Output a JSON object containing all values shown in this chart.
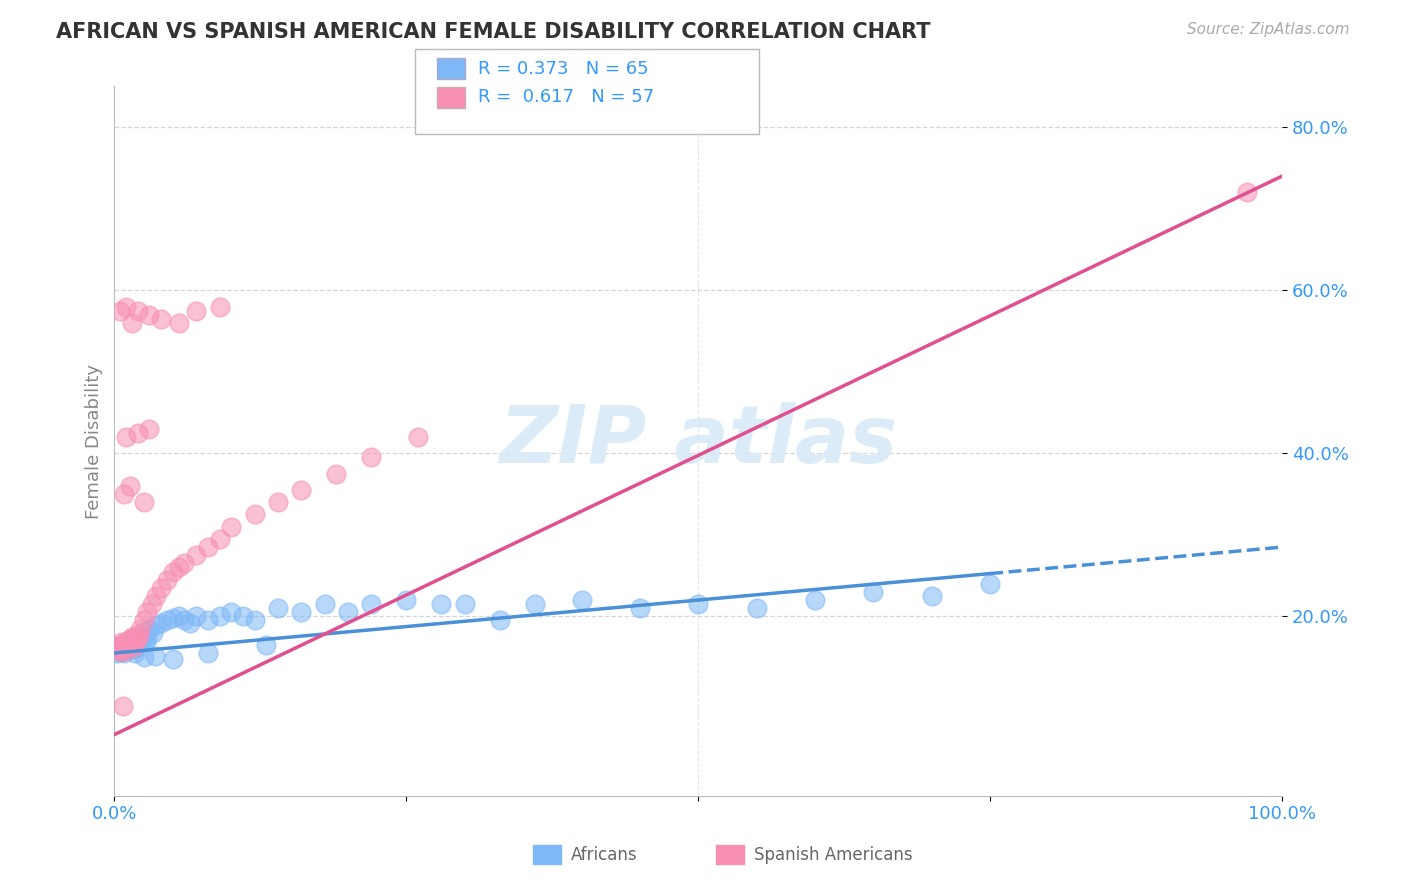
{
  "title": "AFRICAN VS SPANISH AMERICAN FEMALE DISABILITY CORRELATION CHART",
  "source": "Source: ZipAtlas.com",
  "ylabel": "Female Disability",
  "xlim": [
    0.0,
    1.0
  ],
  "ylim": [
    -0.02,
    0.85
  ],
  "ytick_vals": [
    0.2,
    0.4,
    0.6,
    0.8
  ],
  "ytick_labels": [
    "20.0%",
    "40.0%",
    "60.0%",
    "80.0%"
  ],
  "xtick_vals": [
    0.0,
    0.25,
    0.5,
    0.75,
    1.0
  ],
  "xtick_labels": [
    "0.0%",
    "",
    "",
    "",
    "100.0%"
  ],
  "grid_color": "#cccccc",
  "background_color": "#ffffff",
  "african_color": "#7eb8f7",
  "spanish_color": "#f78fb3",
  "african_line_color": "#4a90d9",
  "spanish_line_color": "#e05090",
  "african_R": 0.373,
  "african_N": 65,
  "spanish_R": 0.617,
  "spanish_N": 57,
  "legend_text_color": "#3399ff",
  "axis_label_color": "#3399ff",
  "ylabel_color": "#888888",
  "title_color": "#333333",
  "source_color": "#aaaaaa",
  "tick_color": "#3399ff",
  "african_x": [
    0.002,
    0.003,
    0.004,
    0.005,
    0.006,
    0.007,
    0.008,
    0.009,
    0.01,
    0.011,
    0.012,
    0.013,
    0.014,
    0.015,
    0.016,
    0.017,
    0.018,
    0.019,
    0.02,
    0.021,
    0.022,
    0.024,
    0.026,
    0.028,
    0.03,
    0.033,
    0.036,
    0.04,
    0.045,
    0.05,
    0.055,
    0.06,
    0.065,
    0.07,
    0.08,
    0.09,
    0.1,
    0.11,
    0.12,
    0.14,
    0.16,
    0.18,
    0.2,
    0.22,
    0.25,
    0.28,
    0.3,
    0.33,
    0.36,
    0.4,
    0.45,
    0.5,
    0.55,
    0.6,
    0.65,
    0.7,
    0.75,
    0.008,
    0.012,
    0.018,
    0.025,
    0.035,
    0.05,
    0.08,
    0.13
  ],
  "african_y": [
    0.155,
    0.158,
    0.16,
    0.163,
    0.165,
    0.162,
    0.158,
    0.165,
    0.168,
    0.162,
    0.17,
    0.168,
    0.165,
    0.172,
    0.168,
    0.16,
    0.165,
    0.162,
    0.17,
    0.168,
    0.175,
    0.17,
    0.168,
    0.172,
    0.185,
    0.18,
    0.19,
    0.192,
    0.195,
    0.198,
    0.2,
    0.195,
    0.192,
    0.2,
    0.195,
    0.2,
    0.205,
    0.2,
    0.195,
    0.21,
    0.205,
    0.215,
    0.205,
    0.215,
    0.22,
    0.215,
    0.215,
    0.195,
    0.215,
    0.22,
    0.21,
    0.215,
    0.21,
    0.22,
    0.23,
    0.225,
    0.24,
    0.155,
    0.16,
    0.155,
    0.15,
    0.152,
    0.148,
    0.155,
    0.165
  ],
  "spanish_x": [
    0.002,
    0.003,
    0.004,
    0.005,
    0.006,
    0.007,
    0.008,
    0.009,
    0.01,
    0.011,
    0.012,
    0.013,
    0.014,
    0.015,
    0.016,
    0.017,
    0.018,
    0.019,
    0.02,
    0.021,
    0.022,
    0.025,
    0.028,
    0.032,
    0.036,
    0.04,
    0.045,
    0.05,
    0.055,
    0.06,
    0.07,
    0.08,
    0.09,
    0.1,
    0.12,
    0.14,
    0.16,
    0.19,
    0.22,
    0.26,
    0.005,
    0.01,
    0.015,
    0.02,
    0.03,
    0.04,
    0.055,
    0.07,
    0.09,
    0.01,
    0.02,
    0.03,
    0.008,
    0.013,
    0.025,
    0.97,
    0.007
  ],
  "spanish_y": [
    0.162,
    0.16,
    0.158,
    0.165,
    0.168,
    0.162,
    0.158,
    0.16,
    0.165,
    0.168,
    0.17,
    0.172,
    0.165,
    0.175,
    0.168,
    0.162,
    0.17,
    0.172,
    0.175,
    0.178,
    0.185,
    0.195,
    0.205,
    0.215,
    0.225,
    0.235,
    0.245,
    0.255,
    0.26,
    0.265,
    0.275,
    0.285,
    0.295,
    0.31,
    0.325,
    0.34,
    0.355,
    0.375,
    0.395,
    0.42,
    0.575,
    0.58,
    0.56,
    0.575,
    0.57,
    0.565,
    0.56,
    0.575,
    0.58,
    0.42,
    0.425,
    0.43,
    0.35,
    0.36,
    0.34,
    0.72,
    0.09
  ],
  "af_line_solid_end": 0.75,
  "af_line_x0": 0.0,
  "af_line_x1": 1.0,
  "sp_line_x0": 0.0,
  "sp_line_x1": 1.0,
  "af_line_y0": 0.155,
  "af_line_y1": 0.285,
  "sp_line_y0": 0.055,
  "sp_line_y1": 0.74
}
